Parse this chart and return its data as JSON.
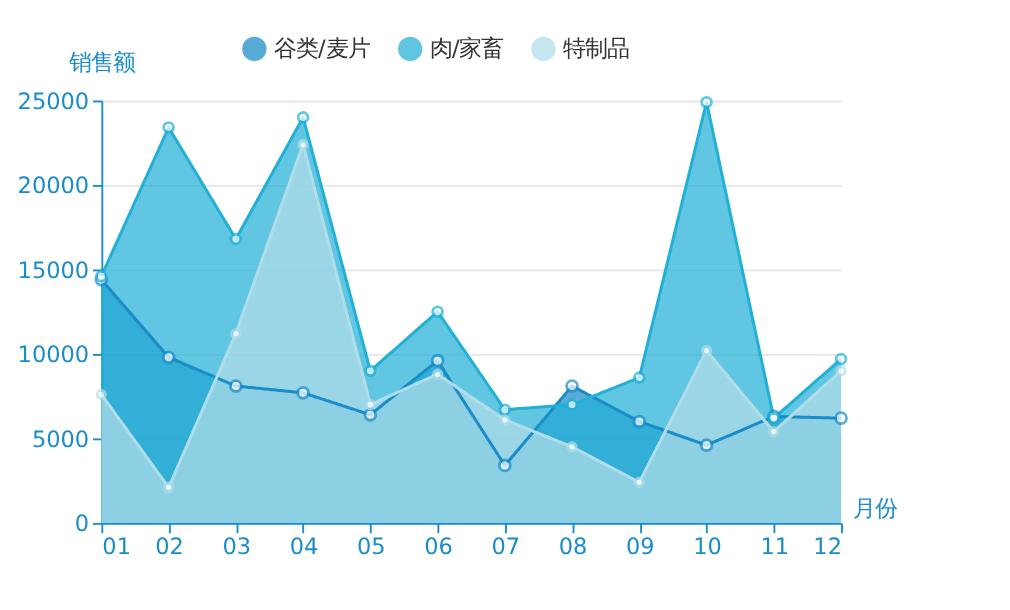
{
  "chart_data": {
    "type": "area",
    "xlabel": "月份",
    "ylabel": "销售额",
    "categories": [
      "01",
      "02",
      "03",
      "04",
      "05",
      "06",
      "07",
      "08",
      "09",
      "10",
      "11",
      "12"
    ],
    "series": [
      {
        "name": "谷类/麦片",
        "color": "#1a8cc8",
        "values": [
          14400,
          9800,
          8100,
          7700,
          6400,
          9600,
          3400,
          8100,
          6000,
          4600,
          6300,
          6200
        ]
      },
      {
        "name": "肉/家畜",
        "color": "#22b0d6",
        "values": [
          14600,
          23400,
          16800,
          24000,
          9000,
          12500,
          6700,
          7000,
          8600,
          24900,
          6200,
          9700
        ]
      },
      {
        "name": "特制品",
        "color": "#b0dde8",
        "values": [
          7600,
          2100,
          11200,
          22400,
          7000,
          8800,
          6100,
          4500,
          2400,
          10200,
          5400,
          9000
        ]
      }
    ],
    "ylim": [
      0,
      25000
    ],
    "yticks": [
      0,
      5000,
      10000,
      15000,
      20000,
      25000
    ],
    "grid": "y",
    "legend": "top",
    "marker": "circle",
    "line_style": "solid"
  }
}
